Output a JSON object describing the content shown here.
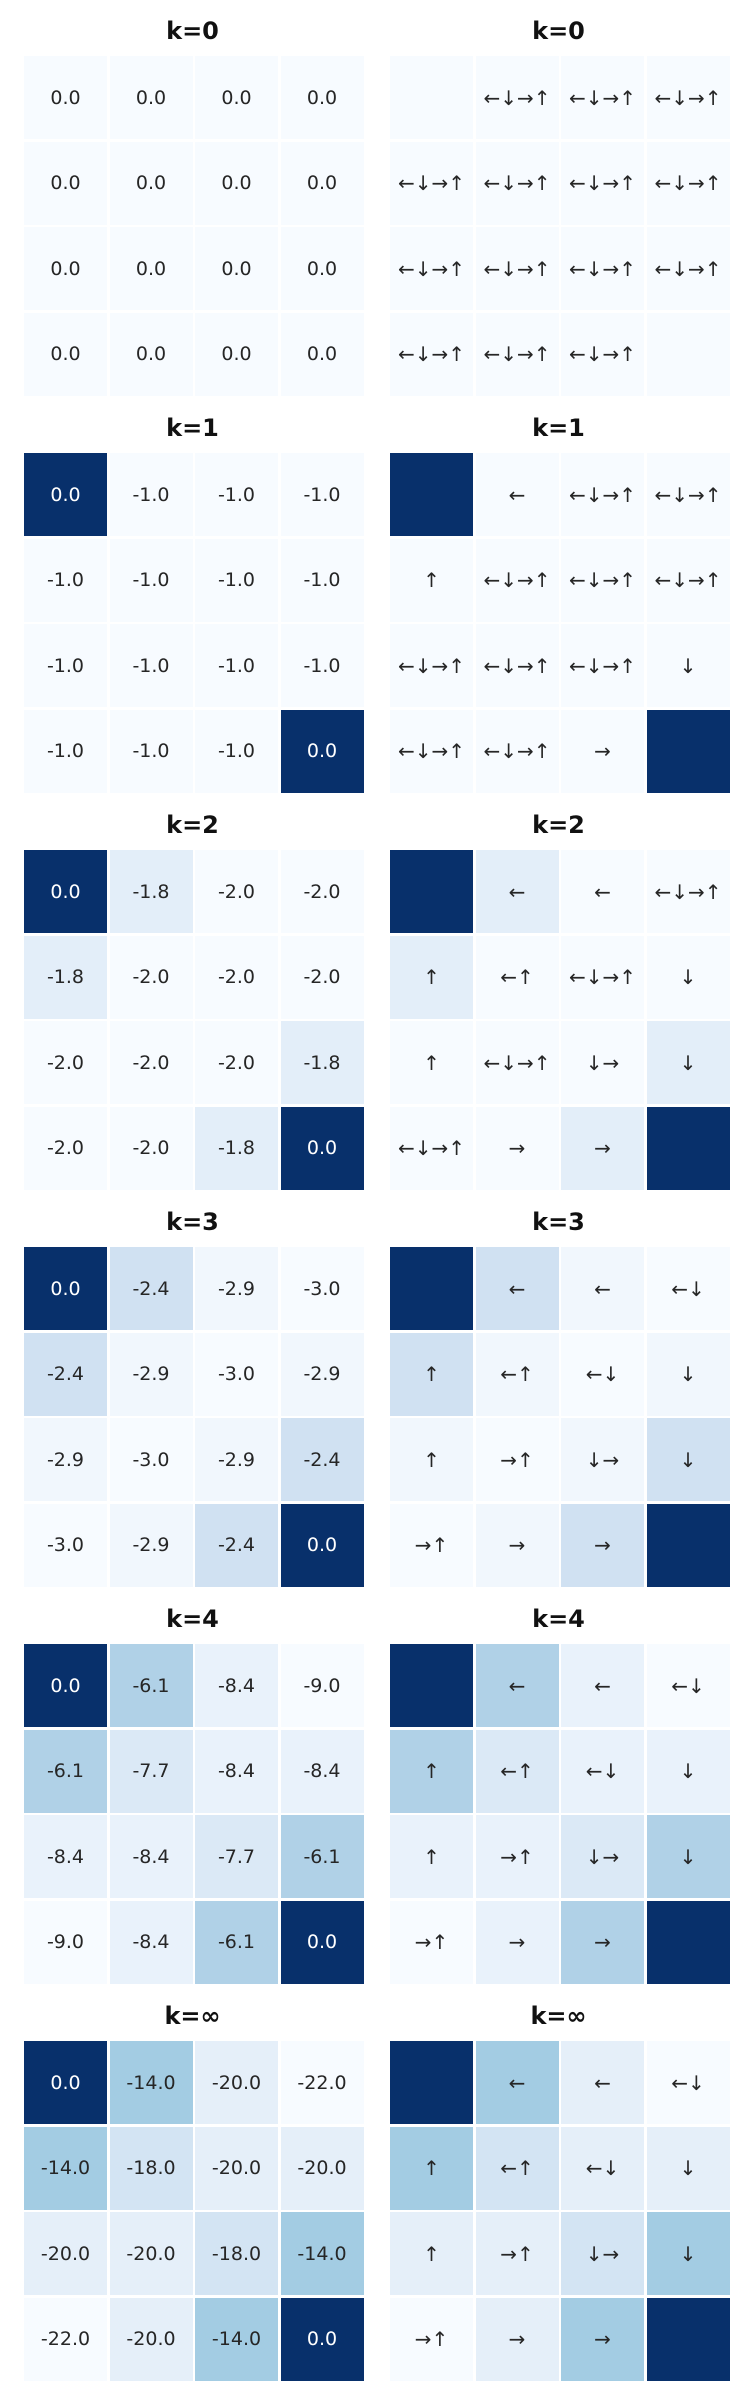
{
  "chart_data": {
    "type": "heatmap",
    "colormap": {
      "name": "Blues",
      "stops": [
        "#f7fbff",
        "#deebf7",
        "#c6dbef",
        "#9ecae1",
        "#6baed6",
        "#4292c6",
        "#2171b5",
        "#08519c",
        "#08306b"
      ],
      "light_text": "#ffffff",
      "dark_text": "#262626"
    },
    "panels": [
      {
        "title": "k=0",
        "values": [
          [
            0.0,
            0.0,
            0.0,
            0.0
          ],
          [
            0.0,
            0.0,
            0.0,
            0.0
          ],
          [
            0.0,
            0.0,
            0.0,
            0.0
          ],
          [
            0.0,
            0.0,
            0.0,
            0.0
          ]
        ],
        "value_labels": [
          [
            "0.0",
            "0.0",
            "0.0",
            "0.0"
          ],
          [
            "0.0",
            "0.0",
            "0.0",
            "0.0"
          ],
          [
            "0.0",
            "0.0",
            "0.0",
            "0.0"
          ],
          [
            "0.0",
            "0.0",
            "0.0",
            "0.0"
          ]
        ],
        "policy_title": "k=0",
        "policy": [
          [
            "",
            "←↓→↑",
            "←↓→↑",
            "←↓→↑"
          ],
          [
            "←↓→↑",
            "←↓→↑",
            "←↓→↑",
            "←↓→↑"
          ],
          [
            "←↓→↑",
            "←↓→↑",
            "←↓→↑",
            "←↓→↑"
          ],
          [
            "←↓→↑",
            "←↓→↑",
            "←↓→↑",
            ""
          ]
        ],
        "shade": [
          [
            0.0,
            0.0,
            0.0,
            0.0
          ],
          [
            0.0,
            0.0,
            0.0,
            0.0
          ],
          [
            0.0,
            0.0,
            0.0,
            0.0
          ],
          [
            0.0,
            0.0,
            0.0,
            0.0
          ]
        ]
      },
      {
        "title": "k=1",
        "values": [
          [
            0.0,
            -1.0,
            -1.0,
            -1.0
          ],
          [
            -1.0,
            -1.0,
            -1.0,
            -1.0
          ],
          [
            -1.0,
            -1.0,
            -1.0,
            -1.0
          ],
          [
            -1.0,
            -1.0,
            -1.0,
            0.0
          ]
        ],
        "value_labels": [
          [
            "0.0",
            "-1.0",
            "-1.0",
            "-1.0"
          ],
          [
            "-1.0",
            "-1.0",
            "-1.0",
            "-1.0"
          ],
          [
            "-1.0",
            "-1.0",
            "-1.0",
            "-1.0"
          ],
          [
            "-1.0",
            "-1.0",
            "-1.0",
            "0.0"
          ]
        ],
        "policy_title": "k=1",
        "policy": [
          [
            "",
            "←",
            "←↓→↑",
            "←↓→↑"
          ],
          [
            "↑",
            "←↓→↑",
            "←↓→↑",
            "←↓→↑"
          ],
          [
            "←↓→↑",
            "←↓→↑",
            "←↓→↑",
            "↓"
          ],
          [
            "←↓→↑",
            "←↓→↑",
            "→",
            ""
          ]
        ],
        "shade": [
          [
            1.0,
            0.0,
            0.0,
            0.0
          ],
          [
            0.0,
            0.0,
            0.0,
            0.0
          ],
          [
            0.0,
            0.0,
            0.0,
            0.0
          ],
          [
            0.0,
            0.0,
            0.0,
            1.0
          ]
        ]
      },
      {
        "title": "k=2",
        "values": [
          [
            0.0,
            -1.8,
            -2.0,
            -2.0
          ],
          [
            -1.8,
            -2.0,
            -2.0,
            -2.0
          ],
          [
            -2.0,
            -2.0,
            -2.0,
            -1.8
          ],
          [
            -2.0,
            -2.0,
            -1.8,
            0.0
          ]
        ],
        "value_labels": [
          [
            "0.0",
            "-1.8",
            "-2.0",
            "-2.0"
          ],
          [
            "-1.8",
            "-2.0",
            "-2.0",
            "-2.0"
          ],
          [
            "-2.0",
            "-2.0",
            "-2.0",
            "-1.8"
          ],
          [
            "-2.0",
            "-2.0",
            "-1.8",
            "0.0"
          ]
        ],
        "policy_title": "k=2",
        "policy": [
          [
            "",
            "←",
            "←",
            "←↓→↑"
          ],
          [
            "↑",
            "←↑",
            "←↓→↑",
            "↓"
          ],
          [
            "↑",
            "←↓→↑",
            "↓→",
            "↓"
          ],
          [
            "←↓→↑",
            "→",
            "→",
            ""
          ]
        ],
        "shade": [
          [
            1.0,
            0.1,
            0.0,
            0.0
          ],
          [
            0.1,
            0.0,
            0.0,
            0.0
          ],
          [
            0.0,
            0.0,
            0.0,
            0.1
          ],
          [
            0.0,
            0.0,
            0.1,
            1.0
          ]
        ]
      },
      {
        "title": "k=3",
        "values": [
          [
            0.0,
            -2.4,
            -2.9,
            -3.0
          ],
          [
            -2.4,
            -2.9,
            -3.0,
            -2.9
          ],
          [
            -2.9,
            -3.0,
            -2.9,
            -2.4
          ],
          [
            -3.0,
            -2.9,
            -2.4,
            0.0
          ]
        ],
        "value_labels": [
          [
            "0.0",
            "-2.4",
            "-2.9",
            "-3.0"
          ],
          [
            "-2.4",
            "-2.9",
            "-3.0",
            "-2.9"
          ],
          [
            "-2.9",
            "-3.0",
            "-2.9",
            "-2.4"
          ],
          [
            "-3.0",
            "-2.9",
            "-2.4",
            "0.0"
          ]
        ],
        "policy_title": "k=3",
        "policy": [
          [
            "",
            "←",
            "←",
            "←↓"
          ],
          [
            "↑",
            "←↑",
            "←↓",
            "↓"
          ],
          [
            "↑",
            "→↑",
            "↓→",
            "↓"
          ],
          [
            "→↑",
            "→",
            "→",
            ""
          ]
        ],
        "shade": [
          [
            1.0,
            0.2,
            0.03,
            0.0
          ],
          [
            0.2,
            0.03,
            0.0,
            0.03
          ],
          [
            0.03,
            0.0,
            0.03,
            0.2
          ],
          [
            0.0,
            0.03,
            0.2,
            1.0
          ]
        ]
      },
      {
        "title": "k=4",
        "values": [
          [
            0.0,
            -6.1,
            -8.4,
            -9.0
          ],
          [
            -6.1,
            -7.7,
            -8.4,
            -8.4
          ],
          [
            -8.4,
            -8.4,
            -7.7,
            -6.1
          ],
          [
            -9.0,
            -8.4,
            -6.1,
            0.0
          ]
        ],
        "value_labels": [
          [
            "0.0",
            "-6.1",
            "-8.4",
            "-9.0"
          ],
          [
            "-6.1",
            "-7.7",
            "-8.4",
            "-8.4"
          ],
          [
            "-8.4",
            "-8.4",
            "-7.7",
            "-6.1"
          ],
          [
            "-9.0",
            "-8.4",
            "-6.1",
            "0.0"
          ]
        ],
        "policy_title": "k=4",
        "policy": [
          [
            "",
            "←",
            "←",
            "←↓"
          ],
          [
            "↑",
            "←↑",
            "←↓",
            "↓"
          ],
          [
            "↑",
            "→↑",
            "↓→",
            "↓"
          ],
          [
            "→↑",
            "→",
            "→",
            ""
          ]
        ],
        "shade": [
          [
            1.0,
            0.32,
            0.07,
            0.0
          ],
          [
            0.32,
            0.14,
            0.07,
            0.07
          ],
          [
            0.07,
            0.07,
            0.14,
            0.32
          ],
          [
            0.0,
            0.07,
            0.32,
            1.0
          ]
        ]
      },
      {
        "title": "k=∞",
        "values": [
          [
            0.0,
            -14.0,
            -20.0,
            -22.0
          ],
          [
            -14.0,
            -18.0,
            -20.0,
            -20.0
          ],
          [
            -20.0,
            -20.0,
            -18.0,
            -14.0
          ],
          [
            -22.0,
            -20.0,
            -14.0,
            0.0
          ]
        ],
        "value_labels": [
          [
            "0.0",
            "-14.0",
            "-20.0",
            "-22.0"
          ],
          [
            "-14.0",
            "-18.0",
            "-20.0",
            "-20.0"
          ],
          [
            "-20.0",
            "-20.0",
            "-18.0",
            "-14.0"
          ],
          [
            "-22.0",
            "-20.0",
            "-14.0",
            "0.0"
          ]
        ],
        "policy_title": "k=∞",
        "policy": [
          [
            "",
            "←",
            "←",
            "←↓"
          ],
          [
            "↑",
            "←↑",
            "←↓",
            "↓"
          ],
          [
            "↑",
            "→↑",
            "↓→",
            "↓"
          ],
          [
            "→↑",
            "→",
            "→",
            ""
          ]
        ],
        "shade": [
          [
            1.0,
            0.36,
            0.09,
            0.0
          ],
          [
            0.36,
            0.18,
            0.09,
            0.09
          ],
          [
            0.09,
            0.09,
            0.18,
            0.36
          ],
          [
            0.0,
            0.09,
            0.36,
            1.0
          ]
        ]
      }
    ]
  }
}
